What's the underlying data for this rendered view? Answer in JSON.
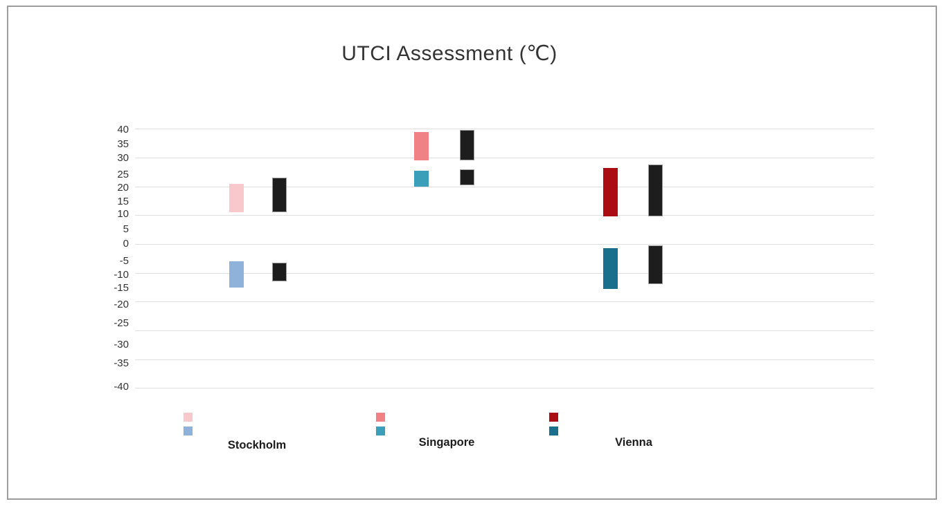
{
  "chart_data": {
    "type": "floating-bar",
    "title": "UTCI Assessment (℃)",
    "y_axis": {
      "min": -40,
      "max": 40,
      "tick_step": 5,
      "tick_labels": [
        "40",
        "35",
        "30",
        "25",
        "20",
        "15",
        "10",
        "5",
        "0",
        "-5",
        "-10",
        "-15",
        "-20",
        "-25",
        "-30",
        "-35",
        "-40"
      ],
      "gridline_values": [
        40,
        30,
        20,
        10,
        0,
        -10,
        -20,
        -30,
        -40,
        -50
      ],
      "grid": true
    },
    "groups": [
      {
        "city": "Stockholm",
        "bars": [
          {
            "id": "upper-colored",
            "color": "#F8C8CD",
            "from": 11,
            "to": 21
          },
          {
            "id": "upper-black",
            "color": "#1D1D1D",
            "from": 11,
            "to": 23
          },
          {
            "id": "lower-colored",
            "color": "#8FB2DA",
            "from": -15,
            "to": -6
          },
          {
            "id": "lower-black",
            "color": "#1D1D1D",
            "from": -13,
            "to": -6.5
          }
        ]
      },
      {
        "city": "Singapore",
        "bars": [
          {
            "id": "upper-colored",
            "color": "#F08184",
            "from": 29,
            "to": 39
          },
          {
            "id": "upper-black",
            "color": "#1D1D1D",
            "from": 29,
            "to": 39.5
          },
          {
            "id": "lower-colored",
            "color": "#3B9FBA",
            "from": 20,
            "to": 25.5
          },
          {
            "id": "lower-black",
            "color": "#1D1D1D",
            "from": 20.5,
            "to": 26
          }
        ]
      },
      {
        "city": "Vienna",
        "bars": [
          {
            "id": "upper-colored",
            "color": "#AB0E12",
            "from": 9.5,
            "to": 26.5
          },
          {
            "id": "upper-black",
            "color": "#1D1D1D",
            "from": 9.5,
            "to": 27.5
          },
          {
            "id": "lower-colored",
            "color": "#1A708C",
            "from": -15.5,
            "to": -1.5
          },
          {
            "id": "lower-black",
            "color": "#1D1D1D",
            "from": -14,
            "to": -0.5
          }
        ]
      }
    ],
    "legend_position": "bottom-per-group",
    "colors": {
      "gridline": "#dedede",
      "black_bar": "#1D1D1D",
      "frame_border": "#9c9c9c",
      "text": "#333333"
    }
  }
}
